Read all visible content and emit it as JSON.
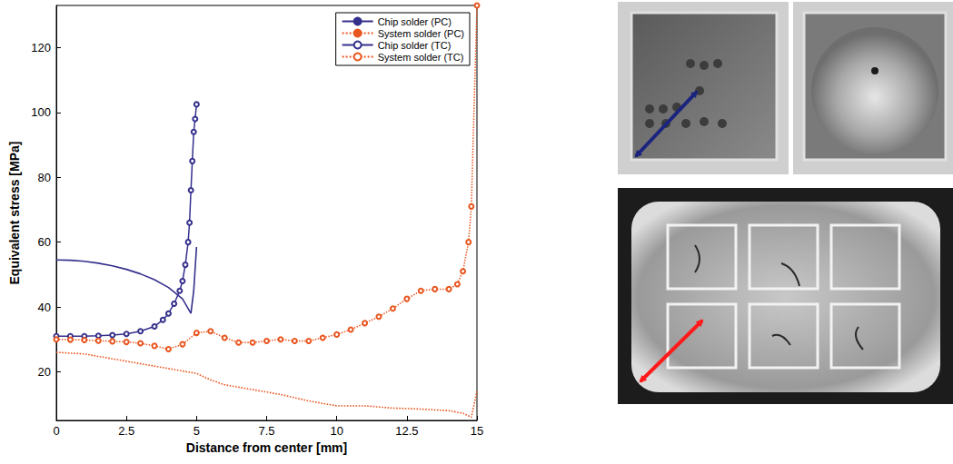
{
  "chart_data": {
    "type": "line",
    "x_label": "Distance from center [mm]",
    "y_label": "Equivalent stress [MPa]",
    "xlim": [
      0,
      15
    ],
    "xticks": [
      0,
      2.5,
      5,
      7.5,
      10,
      12.5,
      15
    ],
    "ylim": [
      5,
      133
    ],
    "yticks": [
      20,
      40,
      60,
      80,
      100,
      120
    ],
    "grid": false,
    "legend": "upper right",
    "series": [
      {
        "name": "Chip solder (PC)",
        "color": "#35308c",
        "line_style": "solid",
        "marker": "none",
        "x": [
          0,
          0.5,
          1,
          1.5,
          2,
          2.5,
          3,
          3.5,
          4,
          4.5,
          4.8,
          4.9,
          5
        ],
        "values": [
          54.5,
          54.4,
          54.1,
          53.5,
          52.7,
          51.6,
          50.2,
          48.4,
          46,
          42.5,
          38,
          45,
          58.5
        ]
      },
      {
        "name": "System solder (PC)",
        "color": "#e8561f",
        "line_style": "dotted",
        "marker": "none",
        "x": [
          0,
          1,
          2,
          3,
          4,
          5,
          5.5,
          6,
          7,
          8,
          9,
          10,
          11,
          12,
          13,
          14,
          14.5,
          14.8,
          15
        ],
        "values": [
          26,
          25.5,
          24,
          22.5,
          21,
          19.5,
          17.5,
          16,
          14.5,
          13,
          11,
          9.5,
          9.5,
          8.8,
          8.5,
          8,
          7.2,
          6,
          14
        ]
      },
      {
        "name": "Chip solder (TC)",
        "color": "#35308c",
        "line_style": "solid",
        "marker": "circle",
        "x": [
          0,
          0.5,
          1,
          1.5,
          2,
          2.5,
          3,
          3.5,
          3.8,
          4,
          4.2,
          4.4,
          4.5,
          4.6,
          4.7,
          4.75,
          4.8,
          4.85,
          4.9,
          4.95,
          5
        ],
        "values": [
          31,
          31,
          31,
          31.1,
          31.3,
          31.7,
          32.5,
          34,
          36,
          38,
          41,
          45,
          48,
          53,
          60,
          66,
          76,
          85,
          94,
          98,
          102.5
        ]
      },
      {
        "name": "System solder (TC)",
        "color": "#e8561f",
        "line_style": "dotted",
        "marker": "circle",
        "x": [
          0,
          0.5,
          1,
          1.5,
          2,
          2.5,
          3,
          3.5,
          4,
          4.5,
          5,
          5.5,
          6,
          6.5,
          7,
          7.5,
          8,
          8.5,
          9,
          9.5,
          10,
          10.5,
          11,
          11.5,
          12,
          12.5,
          13,
          13.5,
          14,
          14.3,
          14.5,
          14.7,
          14.8,
          15
        ],
        "values": [
          30,
          29.9,
          29.8,
          29.6,
          29.4,
          29.2,
          28.8,
          28,
          27,
          28.5,
          32,
          32.5,
          30.5,
          29,
          29,
          29.5,
          30,
          29.5,
          29.5,
          30.5,
          31.5,
          33,
          35,
          37,
          39.5,
          42.5,
          45,
          45.5,
          45.5,
          47,
          51,
          60,
          71,
          133
        ]
      }
    ]
  }
}
